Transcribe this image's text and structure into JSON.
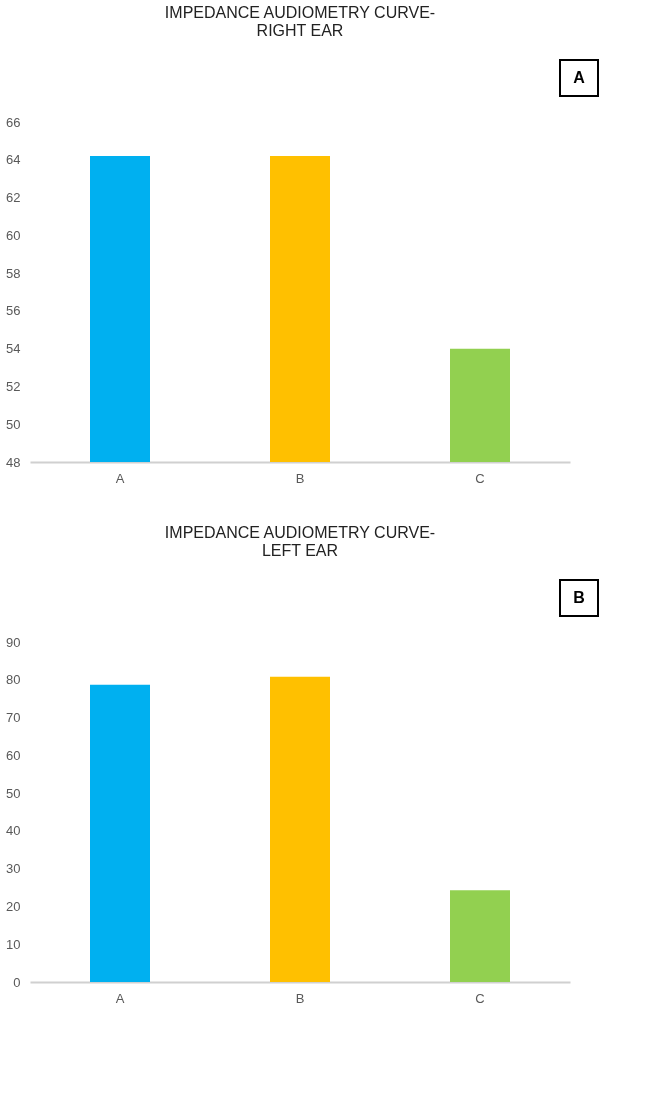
{
  "chart_data": [
    {
      "type": "bar",
      "title": "IMPEDANCE AUDIOMETRY CURVE-\nRIGHT EAR",
      "categories": [
        "A",
        "B",
        "C"
      ],
      "values": [
        64.2,
        64.2,
        54
      ],
      "colors": [
        "#00b0f0",
        "#ffc000",
        "#92d050"
      ],
      "ylim": [
        48,
        66
      ],
      "yticks": [
        48,
        50,
        52,
        54,
        56,
        58,
        60,
        62,
        64,
        66
      ],
      "grid": false,
      "annotations": [
        "A"
      ]
    },
    {
      "type": "bar",
      "title": "IMPEDANCE AUDIOMETRY CURVE-\nLEFT EAR",
      "categories": [
        "A",
        "B",
        "C"
      ],
      "values": [
        78.7,
        80.8,
        24.3
      ],
      "colors": [
        "#00b0f0",
        "#ffc000",
        "#92d050"
      ],
      "ylim": [
        0,
        90
      ],
      "yticks": [
        0,
        10,
        20,
        30,
        40,
        50,
        60,
        70,
        80,
        90
      ],
      "grid": false,
      "annotations": [
        "B"
      ]
    }
  ]
}
